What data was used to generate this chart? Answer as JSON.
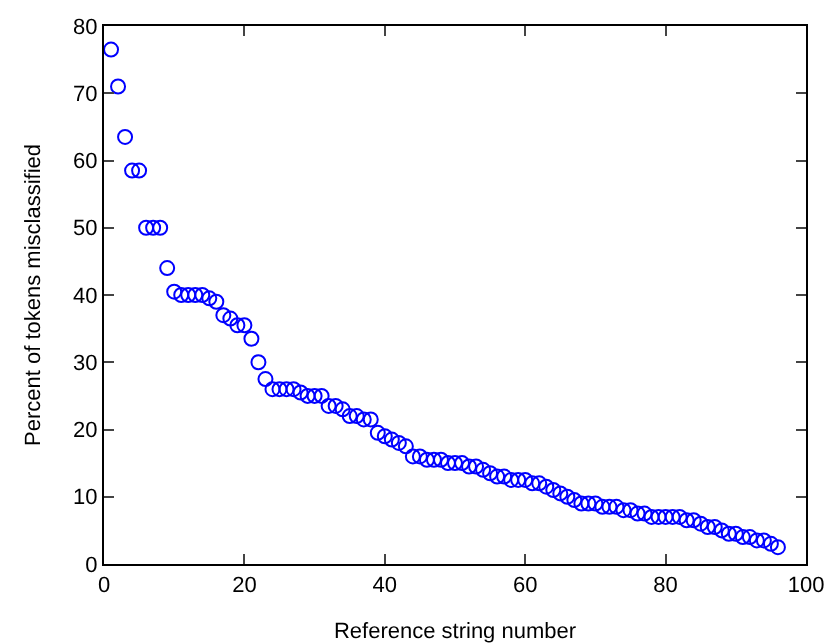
{
  "chart_data": {
    "type": "scatter",
    "xlabel": "Reference string number",
    "ylabel": "Percent of tokens misclassified",
    "marker": "circle",
    "grid": false,
    "xlim": [
      0,
      100
    ],
    "xticks": [
      0,
      20,
      40,
      60,
      80,
      100
    ],
    "ylim": [
      0,
      80
    ],
    "yticks": [
      0,
      10,
      20,
      30,
      40,
      50,
      60,
      70,
      80
    ],
    "x": [
      1,
      2,
      3,
      4,
      5,
      6,
      7,
      8,
      9,
      10,
      11,
      12,
      13,
      14,
      15,
      16,
      17,
      18,
      19,
      20,
      21,
      22,
      23,
      24,
      25,
      26,
      27,
      28,
      29,
      30,
      31,
      32,
      33,
      34,
      35,
      36,
      37,
      38,
      39,
      40,
      41,
      42,
      43,
      44,
      45,
      46,
      47,
      48,
      49,
      50,
      51,
      52,
      53,
      54,
      55,
      56,
      57,
      58,
      59,
      60,
      61,
      62,
      63,
      64,
      65,
      66,
      67,
      68,
      69,
      70,
      71,
      72,
      73,
      74,
      75,
      76,
      77,
      78,
      79,
      80,
      81,
      82,
      83,
      84,
      85,
      86,
      87,
      88,
      89,
      90,
      91,
      92,
      93,
      94,
      95,
      96
    ],
    "series": [
      {
        "color": "#0000ff",
        "values": [
          76.5,
          71,
          63.5,
          58.5,
          58.5,
          50,
          50,
          50,
          44,
          40.5,
          40,
          40,
          40,
          40,
          39.5,
          39,
          37,
          36.5,
          35.5,
          35.5,
          33.5,
          30,
          27.5,
          26,
          26,
          26,
          26,
          25.5,
          25,
          25,
          25,
          23.5,
          23.5,
          23,
          22,
          22,
          21.5,
          21.5,
          19.5,
          19,
          18.5,
          18,
          17.5,
          16,
          16,
          15.5,
          15.5,
          15.5,
          15,
          15,
          15,
          14.5,
          14.5,
          14,
          13.5,
          13,
          13,
          12.5,
          12.5,
          12.5,
          12,
          12,
          11.5,
          11,
          10.5,
          10,
          9.5,
          9,
          9,
          9,
          8.5,
          8.5,
          8.5,
          8,
          8,
          7.5,
          7.5,
          7,
          7,
          7,
          7,
          7,
          6.5,
          6.5,
          6,
          5.5,
          5.5,
          5,
          4.5,
          4.5,
          4,
          4,
          3.5,
          3.5,
          3,
          2.5
        ]
      }
    ]
  }
}
